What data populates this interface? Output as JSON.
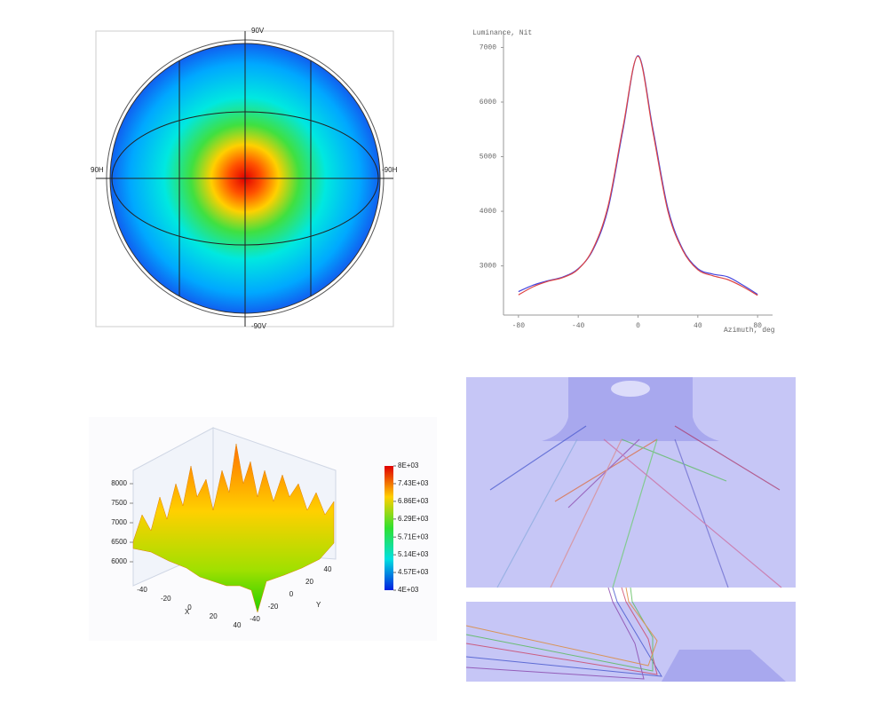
{
  "chart_data": [
    {
      "type": "polar-contour",
      "labels": [
        "90V",
        "-90V",
        "90H",
        "-90H"
      ]
    },
    {
      "type": "line",
      "ylabel": "Luminance, Nit",
      "xlabel": "Azimuth, deg",
      "x": [
        -80,
        -70,
        -60,
        -50,
        -40,
        -30,
        -20,
        -10,
        0,
        10,
        20,
        30,
        40,
        50,
        60,
        70,
        80
      ],
      "series": [
        {
          "color": "#4444dd",
          "values": [
            2530,
            2650,
            2730,
            2800,
            2950,
            3300,
            4050,
            5500,
            6850,
            5500,
            4050,
            3300,
            2950,
            2850,
            2800,
            2650,
            2480
          ]
        },
        {
          "color": "#dd4444",
          "values": [
            2470,
            2620,
            2720,
            2790,
            2940,
            3320,
            4100,
            5550,
            6840,
            5450,
            4000,
            3280,
            2930,
            2820,
            2750,
            2620,
            2460
          ]
        }
      ],
      "xlim": [
        -90,
        90
      ],
      "ylim": [
        2100,
        7300
      ],
      "xticks": [
        -80,
        -40,
        0,
        40,
        80
      ],
      "yticks": [
        3000,
        4000,
        5000,
        6000,
        7000
      ]
    },
    {
      "type": "surface3d",
      "xlabel": "X",
      "ylabel": "Y",
      "zlim": [
        6000,
        8000
      ],
      "zticks": [
        6000,
        6500,
        7000,
        7500,
        8000
      ],
      "xlim": [
        -40,
        40
      ],
      "xticks": [
        -40,
        -20,
        0,
        20,
        40
      ],
      "ylim": [
        -40,
        40
      ],
      "yticks": [
        -40,
        -20,
        0,
        20,
        40
      ],
      "colorbar_lim": [
        4000,
        8000
      ],
      "colorbar_ticks": [
        {
          "value": 8000,
          "label": "8E+03"
        },
        {
          "value": 7430,
          "label": "7.43E+03"
        },
        {
          "value": 6860,
          "label": "6.86E+03"
        },
        {
          "value": 6290,
          "label": "6.29E+03"
        },
        {
          "value": 5710,
          "label": "5.71E+03"
        },
        {
          "value": 5140,
          "label": "5.14E+03"
        },
        {
          "value": 4570,
          "label": "4.57E+03"
        },
        {
          "value": 4000,
          "label": "4E+03"
        }
      ]
    }
  ]
}
